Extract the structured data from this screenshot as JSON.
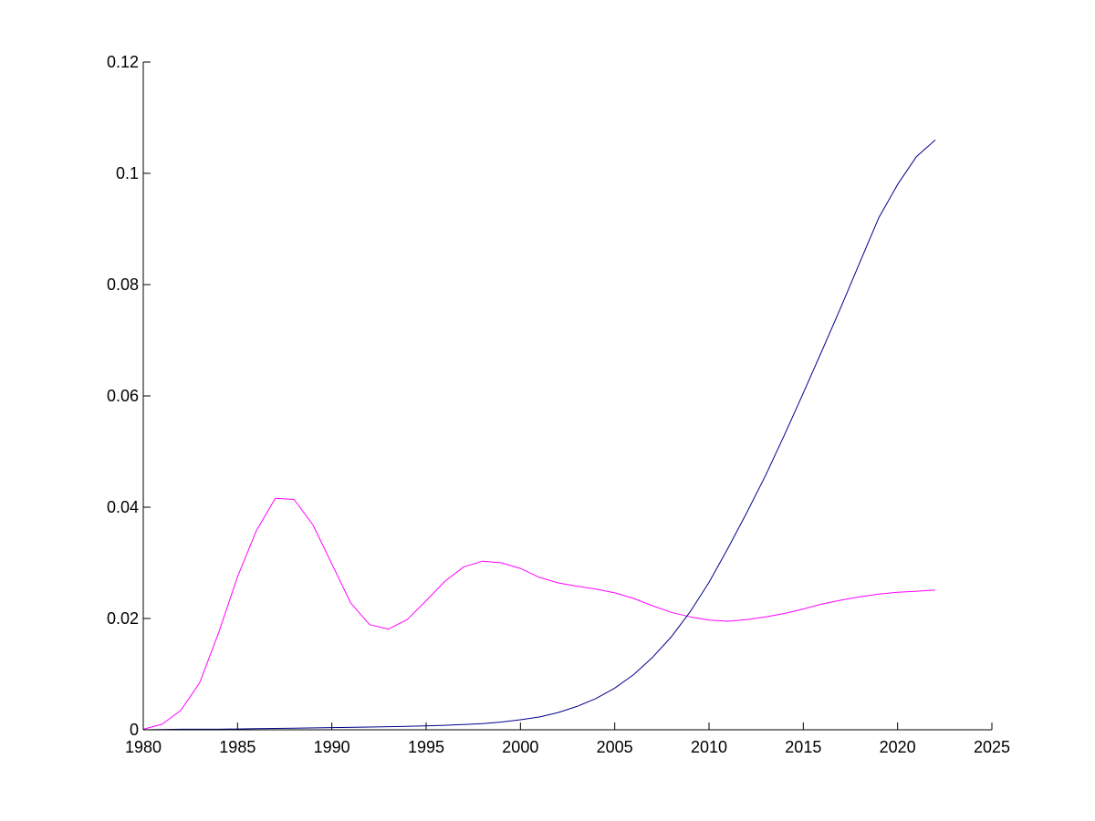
{
  "chart_data": {
    "type": "line",
    "title": "",
    "xlabel": "",
    "ylabel": "",
    "xlim": [
      1980,
      2025
    ],
    "ylim": [
      0,
      0.12
    ],
    "grid": false,
    "box": false,
    "xticks": [
      1980,
      1985,
      1990,
      1995,
      2000,
      2005,
      2010,
      2015,
      2020,
      2025
    ],
    "xtick_labels": [
      "1980",
      "1985",
      "1990",
      "1995",
      "2000",
      "2005",
      "2010",
      "2015",
      "2020",
      "2025"
    ],
    "yticks": [
      0,
      0.02,
      0.04,
      0.06,
      0.08,
      0.1,
      0.12
    ],
    "ytick_labels": [
      "0",
      "0.02",
      "0.04",
      "0.06",
      "0.08",
      "0.1",
      "0.12"
    ],
    "series": [
      {
        "color": "#ff00ff",
        "x": [
          1980,
          1981,
          1982,
          1983,
          1984,
          1985,
          1986,
          1987,
          1988,
          1989,
          1990,
          1991,
          1992,
          1993,
          1994,
          1995,
          1996,
          1997,
          1998,
          1999,
          2000,
          2001,
          2002,
          2003,
          2004,
          2005,
          2006,
          2007,
          2008,
          2009,
          2010,
          2011,
          2012,
          2013,
          2014,
          2015,
          2016,
          2017,
          2018,
          2019,
          2020,
          2021,
          2022
        ],
        "y": [
          0.0001,
          0.001,
          0.0035,
          0.0085,
          0.0175,
          0.0275,
          0.0358,
          0.0416,
          0.0414,
          0.0368,
          0.0298,
          0.0228,
          0.0189,
          0.0181,
          0.0198,
          0.0232,
          0.0267,
          0.0293,
          0.0303,
          0.03,
          0.029,
          0.0274,
          0.0264,
          0.0258,
          0.0253,
          0.0246,
          0.0236,
          0.0223,
          0.0211,
          0.0203,
          0.0197,
          0.0195,
          0.0198,
          0.0203,
          0.0209,
          0.0217,
          0.0226,
          0.0233,
          0.0239,
          0.0244,
          0.0247,
          0.0249,
          0.0251
        ]
      },
      {
        "color": "#00008b",
        "x": [
          1980,
          1982,
          1984,
          1986,
          1988,
          1990,
          1992,
          1994,
          1996,
          1998,
          1999,
          2000,
          2001,
          2002,
          2003,
          2004,
          2005,
          2006,
          2007,
          2008,
          2009,
          2010,
          2011,
          2012,
          2013,
          2014,
          2015,
          2016,
          2017,
          2018,
          2019,
          2020,
          2021,
          2022
        ],
        "y": [
          0,
          0.0001,
          0.0001,
          0.0002,
          0.0003,
          0.0004,
          0.0005,
          0.0006,
          0.0008,
          0.0011,
          0.0014,
          0.0018,
          0.0023,
          0.0031,
          0.0042,
          0.0056,
          0.0075,
          0.0099,
          0.013,
          0.0167,
          0.0212,
          0.0265,
          0.0326,
          0.039,
          0.0457,
          0.053,
          0.0605,
          0.0682,
          0.076,
          0.084,
          0.092,
          0.098,
          0.103,
          0.106
        ]
      }
    ]
  }
}
